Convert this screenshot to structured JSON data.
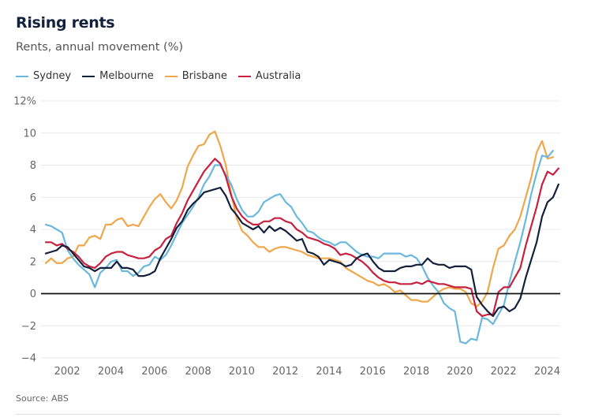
{
  "header": {
    "title": "Rising rents",
    "subtitle": "Rents, annual movement (%)"
  },
  "footer": {
    "source": "Source: ABS"
  },
  "chart_data": {
    "type": "line",
    "title": "Rising rents",
    "subtitle": "Rents, annual movement (%)",
    "xlabel": "",
    "ylabel": "Rents, annual movement (%)",
    "xlim": [
      2001,
      2024.5
    ],
    "ylim": [
      -4,
      12
    ],
    "yticks": [
      -4,
      -2,
      0,
      2,
      4,
      6,
      8,
      10,
      12
    ],
    "ytick_labels": [
      "−4",
      "−2",
      "0",
      "2",
      "4",
      "6",
      "8",
      "10",
      "12%"
    ],
    "xticks": [
      2002,
      2004,
      2006,
      2008,
      2010,
      2012,
      2014,
      2016,
      2018,
      2020,
      2022,
      2024
    ],
    "xtick_labels": [
      "2002",
      "2004",
      "2006",
      "2008",
      "2010",
      "2012",
      "2014",
      "2016",
      "2018",
      "2020",
      "2022",
      "2024"
    ],
    "grid": true,
    "zero_line": true,
    "legend_position": "top-left",
    "x_step": 0.25,
    "x_start": 2001.0,
    "series": [
      {
        "name": "Sydney",
        "color": "#6bb8dd",
        "values": [
          4.3,
          4.2,
          4.0,
          3.8,
          2.7,
          2.2,
          1.8,
          1.5,
          1.2,
          0.4,
          1.3,
          1.6,
          2.0,
          2.1,
          1.4,
          1.4,
          1.1,
          1.3,
          1.7,
          1.8,
          2.3,
          2.1,
          2.4,
          3.0,
          3.7,
          4.4,
          4.9,
          5.4,
          6.0,
          6.8,
          7.3,
          8.0,
          8.0,
          7.4,
          6.8,
          5.9,
          5.2,
          4.8,
          4.8,
          5.1,
          5.7,
          5.9,
          6.1,
          6.2,
          5.7,
          5.4,
          4.8,
          4.4,
          3.9,
          3.8,
          3.5,
          3.3,
          3.2,
          3.0,
          3.2,
          3.2,
          2.9,
          2.6,
          2.4,
          2.3,
          2.3,
          2.2,
          2.5,
          2.5,
          2.5,
          2.5,
          2.3,
          2.4,
          2.2,
          1.7,
          1.0,
          0.5,
          0.1,
          -0.6,
          -0.9,
          -1.1,
          -3.0,
          -3.1,
          -2.8,
          -2.9,
          -1.5,
          -1.6,
          -1.9,
          -1.3,
          -0.7,
          0.7,
          2.0,
          3.2,
          4.6,
          6.2,
          7.5,
          8.6,
          8.5,
          8.9
        ]
      },
      {
        "name": "Melbourne",
        "color": "#14213d",
        "values": [
          2.5,
          2.6,
          2.7,
          3.0,
          2.9,
          2.5,
          2.1,
          1.7,
          1.6,
          1.4,
          1.6,
          1.6,
          1.6,
          2.0,
          1.6,
          1.6,
          1.5,
          1.1,
          1.1,
          1.2,
          1.4,
          2.2,
          2.8,
          3.4,
          4.1,
          4.5,
          5.2,
          5.6,
          5.9,
          6.3,
          6.4,
          6.5,
          6.6,
          6.1,
          5.3,
          4.9,
          4.4,
          4.2,
          4.0,
          4.2,
          3.8,
          4.2,
          3.9,
          4.1,
          3.9,
          3.6,
          3.3,
          3.4,
          2.6,
          2.5,
          2.3,
          1.8,
          2.1,
          2.0,
          1.9,
          1.7,
          1.8,
          2.2,
          2.4,
          2.5,
          2.0,
          1.6,
          1.4,
          1.4,
          1.4,
          1.6,
          1.7,
          1.7,
          1.8,
          1.8,
          2.2,
          1.9,
          1.8,
          1.8,
          1.6,
          1.7,
          1.7,
          1.7,
          1.5,
          -0.2,
          -0.7,
          -1.1,
          -1.4,
          -0.9,
          -0.8,
          -1.1,
          -0.9,
          -0.3,
          1.0,
          2.1,
          3.2,
          4.8,
          5.7,
          6.0,
          6.8
        ]
      },
      {
        "name": "Brisbane",
        "color": "#f0a64a",
        "values": [
          1.9,
          2.2,
          1.9,
          1.9,
          2.2,
          2.3,
          3.0,
          3.0,
          3.5,
          3.6,
          3.4,
          4.3,
          4.3,
          4.6,
          4.7,
          4.2,
          4.3,
          4.2,
          4.8,
          5.4,
          5.9,
          6.2,
          5.7,
          5.3,
          5.8,
          6.6,
          7.9,
          8.6,
          9.2,
          9.3,
          9.9,
          10.1,
          9.2,
          8.0,
          6.2,
          4.7,
          3.9,
          3.6,
          3.2,
          2.9,
          2.9,
          2.6,
          2.8,
          2.9,
          2.9,
          2.8,
          2.7,
          2.6,
          2.4,
          2.3,
          2.2,
          2.2,
          2.2,
          2.1,
          2.0,
          1.6,
          1.4,
          1.2,
          1.0,
          0.8,
          0.7,
          0.5,
          0.6,
          0.4,
          0.1,
          0.2,
          -0.1,
          -0.4,
          -0.4,
          -0.5,
          -0.5,
          -0.2,
          0.1,
          0.3,
          0.4,
          0.3,
          0.3,
          0.1,
          -0.6,
          -0.8,
          -0.5,
          0.1,
          1.6,
          2.8,
          3.0,
          3.6,
          4.0,
          4.8,
          6.0,
          7.2,
          8.8,
          9.5,
          8.4,
          8.5
        ]
      },
      {
        "name": "Australia",
        "color": "#c8203f",
        "values": [
          3.2,
          3.2,
          3.0,
          3.1,
          2.8,
          2.6,
          2.3,
          1.9,
          1.7,
          1.6,
          1.9,
          2.3,
          2.5,
          2.6,
          2.6,
          2.4,
          2.3,
          2.2,
          2.2,
          2.3,
          2.7,
          2.9,
          3.4,
          3.6,
          4.4,
          5.0,
          5.8,
          6.4,
          7.0,
          7.6,
          8.0,
          8.4,
          8.1,
          7.3,
          6.1,
          5.3,
          4.8,
          4.5,
          4.3,
          4.3,
          4.5,
          4.5,
          4.7,
          4.7,
          4.5,
          4.4,
          4.0,
          3.8,
          3.5,
          3.4,
          3.3,
          3.1,
          3.0,
          2.8,
          2.4,
          2.5,
          2.4,
          2.2,
          2.0,
          1.7,
          1.3,
          1.0,
          0.8,
          0.7,
          0.7,
          0.6,
          0.6,
          0.6,
          0.7,
          0.6,
          0.8,
          0.7,
          0.6,
          0.6,
          0.5,
          0.4,
          0.4,
          0.4,
          0.3,
          -1.1,
          -1.4,
          -1.3,
          -1.3,
          0.1,
          0.4,
          0.4,
          1.0,
          1.6,
          3.0,
          4.2,
          5.4,
          6.8,
          7.6,
          7.4,
          7.8
        ]
      }
    ]
  }
}
